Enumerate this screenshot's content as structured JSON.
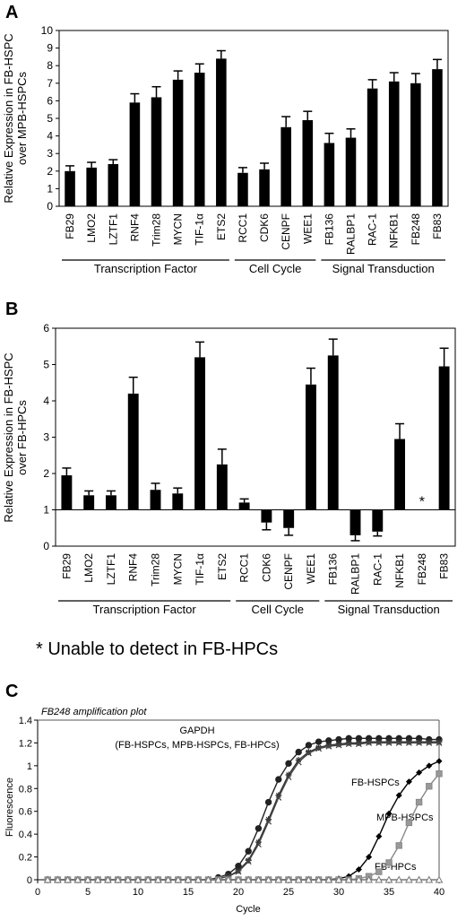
{
  "chart_data": [
    {
      "panel_label": "A",
      "type": "bar",
      "ylabel_lines": [
        "Relative Expression in FB-HSPC",
        "over MPB-HSPCs"
      ],
      "ylim": [
        0,
        10
      ],
      "yticks": [
        0,
        1,
        2,
        3,
        4,
        5,
        6,
        7,
        8,
        9,
        10
      ],
      "categories": [
        "FB29",
        "LMO2",
        "LZTF1",
        "RNF4",
        "Trim28",
        "MYCN",
        "TIF-1α",
        "ETS2",
        "RCC1",
        "CDK6",
        "CENPF",
        "WEE1",
        "FB136",
        "RALBP1",
        "RAC-1",
        "NFKB1",
        "FB248",
        "FB83"
      ],
      "values": [
        2.0,
        2.2,
        2.4,
        5.9,
        6.2,
        7.2,
        7.6,
        8.4,
        1.9,
        2.1,
        4.5,
        4.9,
        3.6,
        3.9,
        6.7,
        7.1,
        7.0,
        7.8
      ],
      "errors": [
        0.3,
        0.3,
        0.25,
        0.5,
        0.6,
        0.5,
        0.5,
        0.45,
        0.3,
        0.35,
        0.6,
        0.5,
        0.55,
        0.5,
        0.5,
        0.5,
        0.55,
        0.55
      ],
      "groups": [
        {
          "label": "Transcription Factor",
          "start": 0,
          "end": 7
        },
        {
          "label": "Cell Cycle",
          "start": 8,
          "end": 11
        },
        {
          "label": "Signal Transduction",
          "start": 12,
          "end": 17
        }
      ]
    },
    {
      "panel_label": "B",
      "type": "bar",
      "ylabel_lines": [
        "Relative Expression in FB-HSPC",
        "over FB-HPCs"
      ],
      "ylim": [
        0,
        6
      ],
      "yticks": [
        0,
        1,
        2,
        3,
        4,
        5,
        6
      ],
      "baseline": 1,
      "categories": [
        "FB29",
        "LMO2",
        "LZTF1",
        "RNF4",
        "Trim28",
        "MYCN",
        "TIF-1α",
        "ETS2",
        "RCC1",
        "CDK6",
        "CENPF",
        "WEE1",
        "FB136",
        "RALBP1",
        "RAC-1",
        "NFKB1",
        "FB248",
        "FB83"
      ],
      "values": [
        1.95,
        1.4,
        1.4,
        4.2,
        1.55,
        1.45,
        5.2,
        2.25,
        1.2,
        0.65,
        0.5,
        4.45,
        5.25,
        0.3,
        0.4,
        2.95,
        null,
        4.95
      ],
      "errors": [
        0.2,
        0.12,
        0.12,
        0.45,
        0.18,
        0.15,
        0.42,
        0.42,
        0.1,
        0.2,
        0.2,
        0.45,
        0.45,
        0.15,
        0.12,
        0.42,
        null,
        0.5
      ],
      "missing_marker": "*",
      "groups": [
        {
          "label": "Transcription Factor",
          "start": 0,
          "end": 7
        },
        {
          "label": "Cell Cycle",
          "start": 8,
          "end": 11
        },
        {
          "label": "Signal Transduction",
          "start": 12,
          "end": 17
        }
      ],
      "footnote": "* Unable to detect in FB-HPCs"
    },
    {
      "panel_label": "C",
      "type": "line",
      "title": "FB248 amplification plot",
      "xlabel": "Cycle",
      "ylabel": "Fluorescence",
      "xlim": [
        0,
        40
      ],
      "ylim": [
        0,
        1.4
      ],
      "xticks": [
        0,
        5,
        10,
        15,
        20,
        25,
        30,
        35,
        40
      ],
      "yticks": [
        0,
        0.2,
        0.4,
        0.6,
        0.8,
        1,
        1.2,
        1.4
      ],
      "annotations": [
        {
          "lines": [
            "GAPDH",
            "(FB-HSPCs, MPB-HSPCs, FB-HPCs)"
          ]
        },
        {
          "lines": [
            "FB-HSPCs"
          ]
        },
        {
          "lines": [
            "MPB-HSPCs"
          ]
        },
        {
          "lines": [
            "FB-HPCs"
          ]
        }
      ],
      "series": [
        {
          "key": "gapdh_fbhspc",
          "marker": "circle",
          "x": [
            1,
            2,
            3,
            4,
            5,
            6,
            7,
            8,
            9,
            10,
            11,
            12,
            13,
            14,
            15,
            16,
            17,
            18,
            19,
            20,
            21,
            22,
            23,
            24,
            25,
            26,
            27,
            28,
            29,
            30,
            31,
            32,
            33,
            34,
            35,
            36,
            37,
            38,
            39,
            40
          ],
          "y": [
            0,
            0,
            0,
            0,
            0,
            0,
            0,
            0,
            0,
            0,
            0,
            0,
            0,
            0,
            0,
            0,
            0,
            0.02,
            0.05,
            0.12,
            0.25,
            0.45,
            0.68,
            0.88,
            1.02,
            1.12,
            1.18,
            1.21,
            1.22,
            1.23,
            1.24,
            1.24,
            1.24,
            1.24,
            1.24,
            1.24,
            1.24,
            1.24,
            1.23,
            1.23
          ]
        },
        {
          "key": "gapdh_mpbhspc",
          "marker": "star",
          "x": [
            1,
            2,
            3,
            4,
            5,
            6,
            7,
            8,
            9,
            10,
            11,
            12,
            13,
            14,
            15,
            16,
            17,
            18,
            19,
            20,
            21,
            22,
            23,
            24,
            25,
            26,
            27,
            28,
            29,
            30,
            31,
            32,
            33,
            34,
            35,
            36,
            37,
            38,
            39,
            40
          ],
          "y": [
            0,
            0,
            0,
            0,
            0,
            0,
            0,
            0,
            0,
            0,
            0,
            0,
            0,
            0,
            0,
            0,
            0,
            0.01,
            0.03,
            0.08,
            0.17,
            0.33,
            0.53,
            0.74,
            0.92,
            1.05,
            1.12,
            1.16,
            1.18,
            1.19,
            1.2,
            1.2,
            1.21,
            1.21,
            1.21,
            1.21,
            1.21,
            1.21,
            1.21,
            1.21
          ]
        },
        {
          "key": "gapdh_fbhpc",
          "marker": "x",
          "x": [
            1,
            2,
            3,
            4,
            5,
            6,
            7,
            8,
            9,
            10,
            11,
            12,
            13,
            14,
            15,
            16,
            17,
            18,
            19,
            20,
            21,
            22,
            23,
            24,
            25,
            26,
            27,
            28,
            29,
            30,
            31,
            32,
            33,
            34,
            35,
            36,
            37,
            38,
            39,
            40
          ],
          "y": [
            0,
            0,
            0,
            0,
            0,
            0,
            0,
            0,
            0,
            0,
            0,
            0,
            0,
            0,
            0,
            0,
            0,
            0.01,
            0.03,
            0.07,
            0.16,
            0.31,
            0.51,
            0.72,
            0.9,
            1.03,
            1.11,
            1.15,
            1.17,
            1.18,
            1.19,
            1.19,
            1.2,
            1.2,
            1.2,
            1.2,
            1.2,
            1.2,
            1.2,
            1.2
          ]
        },
        {
          "key": "fb248_fbhspc",
          "marker": "diamond",
          "x": [
            1,
            2,
            3,
            4,
            5,
            6,
            7,
            8,
            9,
            10,
            11,
            12,
            13,
            14,
            15,
            16,
            17,
            18,
            19,
            20,
            21,
            22,
            23,
            24,
            25,
            26,
            27,
            28,
            29,
            30,
            31,
            32,
            33,
            34,
            35,
            36,
            37,
            38,
            39,
            40
          ],
          "y": [
            0,
            0,
            0,
            0,
            0,
            0,
            0,
            0,
            0,
            0,
            0,
            0,
            0,
            0,
            0,
            0,
            0,
            0,
            0,
            0,
            0,
            0,
            0,
            0,
            0,
            0,
            0,
            0,
            0,
            0.01,
            0.03,
            0.09,
            0.2,
            0.38,
            0.58,
            0.74,
            0.86,
            0.94,
            1.0,
            1.04
          ]
        },
        {
          "key": "fb248_mpbhspc",
          "marker": "square",
          "x": [
            1,
            2,
            3,
            4,
            5,
            6,
            7,
            8,
            9,
            10,
            11,
            12,
            13,
            14,
            15,
            16,
            17,
            18,
            19,
            20,
            21,
            22,
            23,
            24,
            25,
            26,
            27,
            28,
            29,
            30,
            31,
            32,
            33,
            34,
            35,
            36,
            37,
            38,
            39,
            40
          ],
          "y": [
            0,
            0,
            0,
            0,
            0,
            0,
            0,
            0,
            0,
            0,
            0,
            0,
            0,
            0,
            0,
            0,
            0,
            0,
            0,
            0,
            0,
            0,
            0,
            0,
            0,
            0,
            0,
            0,
            0,
            0,
            0,
            0.01,
            0.03,
            0.07,
            0.15,
            0.3,
            0.5,
            0.68,
            0.82,
            0.93
          ]
        },
        {
          "key": "fb248_fbhpc",
          "marker": "triangle",
          "x": [
            1,
            2,
            3,
            4,
            5,
            6,
            7,
            8,
            9,
            10,
            11,
            12,
            13,
            14,
            15,
            16,
            17,
            18,
            19,
            20,
            21,
            22,
            23,
            24,
            25,
            26,
            27,
            28,
            29,
            30,
            31,
            32,
            33,
            34,
            35,
            36,
            37,
            38,
            39,
            40
          ],
          "y": [
            0,
            0,
            0,
            0,
            0,
            0,
            0,
            0,
            0,
            0,
            0,
            0,
            0,
            0,
            0,
            0,
            0,
            0,
            0,
            0,
            0,
            0,
            0,
            0,
            0,
            0,
            0,
            0,
            0,
            0,
            0,
            0,
            0,
            0,
            0,
            0,
            0,
            0,
            0,
            0
          ]
        }
      ]
    }
  ]
}
